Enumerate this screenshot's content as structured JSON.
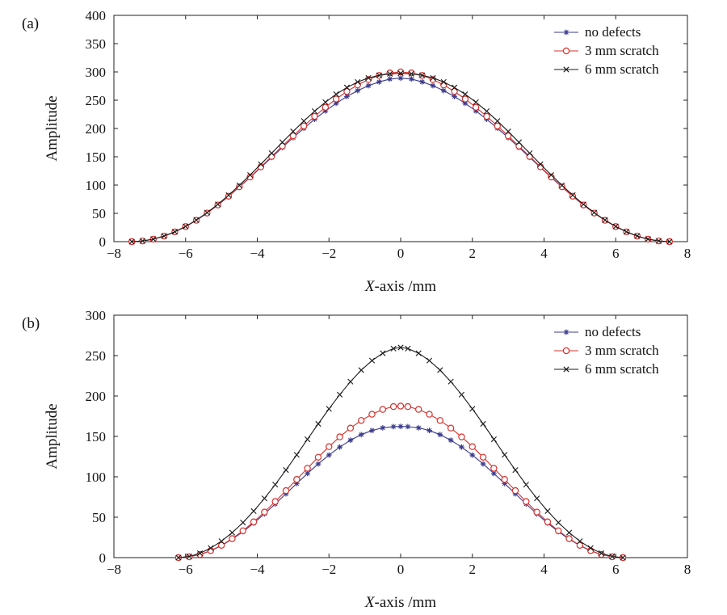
{
  "chart_data": [
    {
      "type": "line",
      "panel_label": "(a)",
      "xlabel_var": "X",
      "xlabel_rest": "-axis /mm",
      "ylabel": "Amplitude",
      "xlim": [
        -8,
        8
      ],
      "ylim": [
        0,
        400
      ],
      "xticks": [
        -8,
        -6,
        -4,
        -2,
        0,
        2,
        4,
        6,
        8
      ],
      "xtick_labels": [
        "−8",
        "−6",
        "−4",
        "−2",
        "0",
        "2",
        "4",
        "6",
        "8"
      ],
      "yticks": [
        0,
        50,
        100,
        150,
        200,
        250,
        300,
        350,
        400
      ],
      "ytick_labels": [
        "0",
        "50",
        "100",
        "150",
        "200",
        "250",
        "300",
        "350",
        "400"
      ],
      "legend_position": "top-right",
      "x": [
        -7.5,
        -7.2,
        -6.9,
        -6.6,
        -6.3,
        -6.0,
        -5.7,
        -5.4,
        -5.1,
        -4.8,
        -4.5,
        -4.2,
        -3.9,
        -3.6,
        -3.3,
        -3.0,
        -2.7,
        -2.4,
        -2.1,
        -1.8,
        -1.5,
        -1.2,
        -0.9,
        -0.6,
        -0.3,
        0,
        0.3,
        0.6,
        0.9,
        1.2,
        1.5,
        1.8,
        2.1,
        2.4,
        2.7,
        3.0,
        3.3,
        3.6,
        3.9,
        4.2,
        4.5,
        4.8,
        5.1,
        5.4,
        5.7,
        6.0,
        6.3,
        6.6,
        6.9,
        7.2,
        7.5
      ],
      "series": [
        {
          "name": "no defects",
          "color": "#3a3a8c",
          "marker": "star",
          "values": [
            0,
            1.1,
            4.3,
            9.7,
            17.1,
            26.5,
            37.6,
            50.4,
            64.6,
            80.0,
            96.4,
            113.5,
            131.1,
            148.8,
            166.5,
            183.8,
            200.5,
            216.3,
            231.0,
            244.5,
            256.6,
            267.0,
            275.7,
            282.4,
            287.5,
            289.0,
            287.5,
            282.4,
            275.7,
            267.0,
            256.6,
            244.5,
            231.0,
            216.3,
            200.5,
            183.8,
            166.5,
            148.8,
            131.1,
            113.5,
            96.4,
            80.0,
            64.6,
            50.4,
            37.6,
            26.5,
            17.1,
            9.7,
            4.3,
            1.1,
            0
          ]
        },
        {
          "name": "3 mm scratch",
          "color": "#d9302c",
          "marker": "circle",
          "values": [
            0,
            1.2,
            4.4,
            9.8,
            17.2,
            26.6,
            37.7,
            50.5,
            64.8,
            80.3,
            96.9,
            114.3,
            132.2,
            150.5,
            168.9,
            186.9,
            204.5,
            221.5,
            237.5,
            252.2,
            265.5,
            277.0,
            286.5,
            293.8,
            298.3,
            300.0,
            298.3,
            293.8,
            286.5,
            277.0,
            265.5,
            252.2,
            237.5,
            221.5,
            204.5,
            186.9,
            168.9,
            150.5,
            132.2,
            114.3,
            96.9,
            80.3,
            64.8,
            50.5,
            37.7,
            26.6,
            17.2,
            9.8,
            4.4,
            1.2,
            0
          ]
        },
        {
          "name": "6 mm scratch",
          "color": "#1a1a1a",
          "marker": "x",
          "values": [
            0,
            1.2,
            4.5,
            9.9,
            17.4,
            26.9,
            38.2,
            51.3,
            66.0,
            82.2,
            99.5,
            117.8,
            136.9,
            156.3,
            175.7,
            194.8,
            213.3,
            230.6,
            246.5,
            260.6,
            272.5,
            282.2,
            289.4,
            294.0,
            296.7,
            297.5,
            296.7,
            294.0,
            289.4,
            282.2,
            272.5,
            260.6,
            246.5,
            230.6,
            213.3,
            194.8,
            175.7,
            156.3,
            136.9,
            117.8,
            99.5,
            82.2,
            66.0,
            51.3,
            38.2,
            26.9,
            17.4,
            9.9,
            4.5,
            1.2,
            0
          ]
        }
      ]
    },
    {
      "type": "line",
      "panel_label": "(b)",
      "xlabel_var": "X",
      "xlabel_rest": "-axis /mm",
      "ylabel": "Amplitude",
      "xlim": [
        -8,
        8
      ],
      "ylim": [
        0,
        300
      ],
      "xticks": [
        -8,
        -6,
        -4,
        -2,
        0,
        2,
        4,
        6,
        8
      ],
      "xtick_labels": [
        "−8",
        "−6",
        "−4",
        "−2",
        "0",
        "2",
        "4",
        "6",
        "8"
      ],
      "yticks": [
        0,
        50,
        100,
        150,
        200,
        250,
        300
      ],
      "ytick_labels": [
        "0",
        "50",
        "100",
        "150",
        "200",
        "250",
        "300"
      ],
      "legend_position": "top-right",
      "x": [
        -6.2,
        -5.9,
        -5.6,
        -5.3,
        -5.0,
        -4.7,
        -4.4,
        -4.1,
        -3.8,
        -3.5,
        -3.2,
        -2.9,
        -2.6,
        -2.3,
        -2.0,
        -1.7,
        -1.4,
        -1.1,
        -0.8,
        -0.5,
        -0.2,
        0,
        0.2,
        0.5,
        0.8,
        1.1,
        1.4,
        1.7,
        2.0,
        2.3,
        2.6,
        2.9,
        3.2,
        3.5,
        3.8,
        4.1,
        4.4,
        4.7,
        5.0,
        5.3,
        5.6,
        5.9,
        6.2
      ],
      "series": [
        {
          "name": "no defects",
          "color": "#3a3a8c",
          "marker": "star",
          "values": [
            0,
            1.0,
            3.8,
            8.4,
            14.8,
            22.8,
            32.1,
            42.7,
            54.2,
            66.4,
            79.0,
            91.7,
            104.1,
            115.9,
            126.9,
            136.8,
            145.3,
            152.2,
            157.3,
            160.6,
            162.1,
            162.3,
            162.1,
            160.6,
            157.3,
            152.2,
            145.3,
            136.8,
            126.9,
            115.9,
            104.1,
            91.7,
            79.0,
            66.4,
            54.2,
            42.7,
            32.1,
            22.8,
            14.8,
            8.4,
            3.8,
            1.0,
            0
          ]
        },
        {
          "name": "3 mm scratch",
          "color": "#d9302c",
          "marker": "circle",
          "values": [
            0,
            1.0,
            3.9,
            8.6,
            15.2,
            23.5,
            33.2,
            44.3,
            56.4,
            69.4,
            82.9,
            96.8,
            110.5,
            124.2,
            137.3,
            149.4,
            160.3,
            169.7,
            177.4,
            183.4,
            186.9,
            187.5,
            186.9,
            183.4,
            177.4,
            169.7,
            160.3,
            149.4,
            137.3,
            124.2,
            110.5,
            96.8,
            82.9,
            69.4,
            56.4,
            44.3,
            33.2,
            23.5,
            15.2,
            8.6,
            3.9,
            1.0,
            0
          ]
        },
        {
          "name": "6 mm scratch",
          "color": "#1a1a1a",
          "marker": "x",
          "values": [
            0,
            1.4,
            5.4,
            11.8,
            20.3,
            30.9,
            43.4,
            57.6,
            73.3,
            90.3,
            108.4,
            127.2,
            146.4,
            165.5,
            184.1,
            201.7,
            217.8,
            232.0,
            243.8,
            252.9,
            258.7,
            260.0,
            258.7,
            252.9,
            243.8,
            232.0,
            217.8,
            201.7,
            184.1,
            165.5,
            146.4,
            127.2,
            108.4,
            90.3,
            73.3,
            57.6,
            43.4,
            30.9,
            20.3,
            11.8,
            5.4,
            1.4,
            0
          ]
        }
      ]
    }
  ]
}
